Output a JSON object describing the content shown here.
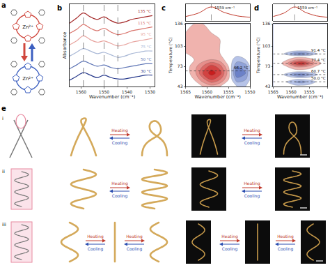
{
  "chart_data": [
    {
      "panel": "b",
      "type": "line",
      "x_label": "Wavenumber (cm⁻¹)",
      "y_label": "Absorbance",
      "x": [
        1565,
        1562,
        1559,
        1556,
        1553,
        1550,
        1547,
        1544,
        1541,
        1538,
        1535,
        1532,
        1529
      ],
      "xlim": [
        1565,
        1528
      ],
      "xticks": [
        1560,
        1550,
        1540,
        1530
      ],
      "ylim": [
        0,
        6.5
      ],
      "tick_labels": "x",
      "grid": false,
      "vlines": [
        1559,
        1550,
        1544
      ],
      "series": [
        {
          "name": "135 °C",
          "color": "#a52a2a",
          "values": [
            5.0,
            5.4,
            5.8,
            5.5,
            5.3,
            5.5,
            5.2,
            5.0,
            5.1,
            5.3,
            5.4,
            5.5,
            5.6
          ]
        },
        {
          "name": "115 °C",
          "color": "#d9736b",
          "values": [
            4.2,
            4.5,
            4.9,
            4.6,
            4.4,
            4.6,
            4.3,
            4.1,
            4.2,
            4.4,
            4.5,
            4.6,
            4.7
          ]
        },
        {
          "name": "95 °C",
          "color": "#e8a5a0",
          "values": [
            3.3,
            3.6,
            4.0,
            3.7,
            3.5,
            3.6,
            3.4,
            3.2,
            3.3,
            3.5,
            3.6,
            3.7,
            3.8
          ]
        },
        {
          "name": "75 °C",
          "color": "#a9b8d6",
          "values": [
            2.4,
            2.7,
            3.0,
            2.8,
            2.6,
            2.7,
            2.5,
            2.3,
            2.4,
            2.6,
            2.7,
            2.8,
            2.8
          ]
        },
        {
          "name": "50 °C",
          "color": "#5d74b5",
          "values": [
            1.4,
            1.7,
            2.0,
            1.8,
            1.6,
            1.7,
            1.5,
            1.4,
            1.5,
            1.6,
            1.7,
            1.8,
            1.8
          ]
        },
        {
          "name": "30 °C",
          "color": "#283a8c",
          "values": [
            0.5,
            0.8,
            1.1,
            0.9,
            0.7,
            0.9,
            0.7,
            0.6,
            0.6,
            0.7,
            0.8,
            0.9,
            0.9
          ]
        }
      ]
    },
    {
      "panel": "c",
      "type": "contour",
      "x_label": "Wavenumber (cm⁻¹)",
      "y_label": "Temperature (°C)",
      "x": [
        1550,
        1551,
        1553,
        1555,
        1557,
        1559,
        1561,
        1563,
        1565
      ],
      "y": [
        43,
        53,
        63,
        73,
        83,
        93,
        103,
        113,
        123,
        136
      ],
      "z": [
        [
          0,
          -0.1,
          -0.1,
          0,
          0.1,
          0.2,
          0.1,
          0,
          0
        ],
        [
          -0.1,
          -0.3,
          -0.4,
          0.1,
          0.5,
          0.7,
          0.4,
          0.1,
          0
        ],
        [
          -0.1,
          -0.5,
          -0.7,
          0.2,
          0.8,
          1.0,
          0.7,
          0.2,
          0
        ],
        [
          -0.1,
          -0.4,
          -0.5,
          0.1,
          0.6,
          0.8,
          0.5,
          0.2,
          0
        ],
        [
          0,
          -0.1,
          -0.2,
          0,
          0.2,
          0.3,
          0.2,
          0.1,
          0
        ],
        [
          0,
          0,
          0,
          0,
          0.1,
          0.2,
          0.2,
          0.2,
          0.1
        ],
        [
          0,
          0,
          0,
          0,
          0.1,
          0.2,
          0.3,
          0.3,
          0.2
        ],
        [
          0,
          0,
          0,
          0,
          0.1,
          0.2,
          0.3,
          0.3,
          0.2
        ],
        [
          0,
          0,
          0,
          0,
          0,
          0.1,
          0.2,
          0.2,
          0.1
        ],
        [
          0,
          0,
          0,
          0,
          0,
          0,
          0.1,
          0.1,
          0
        ]
      ],
      "zlim": [
        -1,
        1
      ],
      "xlim": [
        1565,
        1550
      ],
      "xticks": [
        1565,
        1560,
        1555,
        1550
      ],
      "ylim": [
        43,
        136
      ],
      "yticks": [
        43,
        73,
        103,
        136
      ],
      "marked_temperatures": [
        {
          "value": 66.2,
          "label": "66.2 °C"
        }
      ],
      "inset": {
        "type": "line",
        "x": [
          1550,
          1553,
          1556,
          1559,
          1562,
          1565
        ],
        "values": [
          0.25,
          0.35,
          0.6,
          1.0,
          0.55,
          0.3
        ],
        "ylim": [
          0,
          1.2
        ],
        "marked_x": {
          "value": 1559,
          "label": "1559 cm⁻¹"
        }
      }
    },
    {
      "panel": "d",
      "type": "contour",
      "x_label": "Wavenumber (cm⁻¹)",
      "y_label": "Temperature (°C)",
      "x": [
        1550,
        1551,
        1553,
        1555,
        1557,
        1559,
        1561,
        1563,
        1565
      ],
      "y": [
        43,
        50,
        55,
        60.7,
        66,
        72,
        77.4,
        83,
        88,
        91.4,
        97,
        103,
        120,
        136
      ],
      "z": [
        [
          0,
          0,
          0,
          0,
          0,
          0,
          0,
          0,
          0
        ],
        [
          0,
          -0.02,
          -0.08,
          -0.24,
          -0.4,
          -0.32,
          -0.12,
          -0.02,
          0
        ],
        [
          0,
          0,
          0,
          0,
          0,
          0,
          0,
          0,
          0
        ],
        [
          0,
          -0.03,
          -0.12,
          -0.36,
          -0.6,
          -0.48,
          -0.18,
          -0.03,
          0
        ],
        [
          0,
          0,
          0,
          0,
          0,
          0,
          0,
          0,
          0
        ],
        [
          0,
          0.015,
          0.06,
          0.18,
          0.3,
          0.24,
          0.09,
          0.015,
          0
        ],
        [
          0,
          0.05,
          0.2,
          0.6,
          1,
          0.8,
          0.3,
          0.05,
          0
        ],
        [
          0,
          0.015,
          0.06,
          0.18,
          0.3,
          0.24,
          0.09,
          0.015,
          0
        ],
        [
          0,
          0,
          0,
          0,
          0,
          0,
          0,
          0,
          0
        ],
        [
          0,
          -0.03,
          -0.12,
          -0.36,
          -0.6,
          -0.48,
          -0.18,
          -0.03,
          0
        ],
        [
          0,
          0,
          0,
          0,
          0,
          0,
          0,
          0,
          0
        ],
        [
          0,
          0,
          0,
          0,
          0,
          0,
          0,
          0,
          0
        ],
        [
          0,
          0,
          0,
          0,
          0,
          0,
          0,
          0,
          0
        ],
        [
          0,
          0,
          0,
          0,
          0,
          0,
          0,
          0,
          0
        ]
      ],
      "zlim": [
        -1,
        1
      ],
      "xlim": [
        1565,
        1550
      ],
      "xticks": [
        1565,
        1560,
        1555,
        1550
      ],
      "ylim": [
        43,
        136
      ],
      "yticks": [
        43,
        73,
        103,
        136
      ],
      "marked_temperatures": [
        {
          "value": 91.4,
          "label": "91.4 °C"
        },
        {
          "value": 77.4,
          "label": "77.4 °C"
        },
        {
          "value": 60.7,
          "label": "60.7 °C"
        },
        {
          "value": 50.0,
          "label": "50.0 °C"
        }
      ],
      "inset": {
        "type": "line",
        "x": [
          1550,
          1553,
          1556,
          1559,
          1562,
          1565
        ],
        "values": [
          0.25,
          0.35,
          0.6,
          1.0,
          0.55,
          0.3
        ],
        "ylim": [
          0,
          1.2
        ],
        "marked_x": {
          "value": 1559,
          "label": "1559 cm⁻¹"
        }
      }
    }
  ],
  "diagram": {
    "a": {
      "label": "a",
      "ions": [
        "Zn²⁺",
        "Zn²⁺"
      ]
    },
    "e": {
      "label": "e",
      "rows": [
        {
          "label": "i",
          "transitions": [
            {
              "heating": "Heating",
              "cooling": "Cooling"
            },
            {
              "heating": "Heating",
              "cooling": "Cooling"
            }
          ]
        },
        {
          "label": "ii",
          "transitions": [
            {
              "heating": "Heating",
              "cooling": "Cooling"
            },
            {
              "heating": "Heating",
              "cooling": "Cooling"
            }
          ]
        },
        {
          "label": "iii",
          "transitions": [
            {
              "heating": "Heating",
              "cooling": "Cooling"
            },
            {
              "heating": "Heating",
              "cooling": "Cooling"
            },
            {
              "heating": "Heating",
              "cooling": "Cooling"
            },
            {
              "heating": "Heating",
              "cooling": "Cooling"
            }
          ]
        }
      ]
    }
  }
}
